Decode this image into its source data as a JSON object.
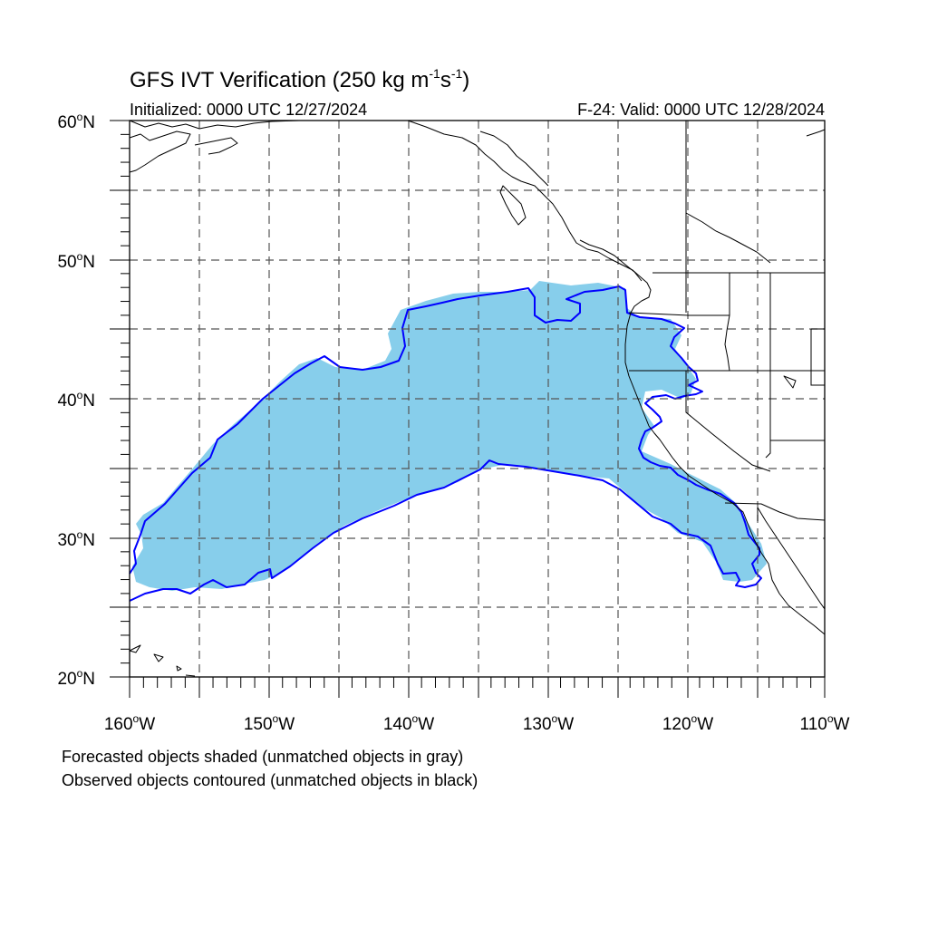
{
  "title": {
    "main": "GFS IVT Verification (250 kg m",
    "exp1": "-1",
    "mid": "s",
    "exp2": "-1",
    "end": ")"
  },
  "subtitle": {
    "initialized": "Initialized: 0000 UTC 12/27/2024",
    "valid": "F-24: Valid: 0000 UTC 12/28/2024"
  },
  "axes": {
    "lat_labels": [
      "60",
      "50",
      "40",
      "30",
      "20"
    ],
    "lat_suffix": "N",
    "lon_labels": [
      "160",
      "150",
      "140",
      "130",
      "120",
      "110"
    ],
    "lon_suffix": "W",
    "degree_symbol": "o"
  },
  "caption": {
    "line1": "Forecasted objects shaded (unmatched objects in gray)",
    "line2": "Observed objects contoured (unmatched objects in black)"
  },
  "colors": {
    "forecast_fill": "#87ceeb",
    "observed_contour": "#0000ff"
  }
}
